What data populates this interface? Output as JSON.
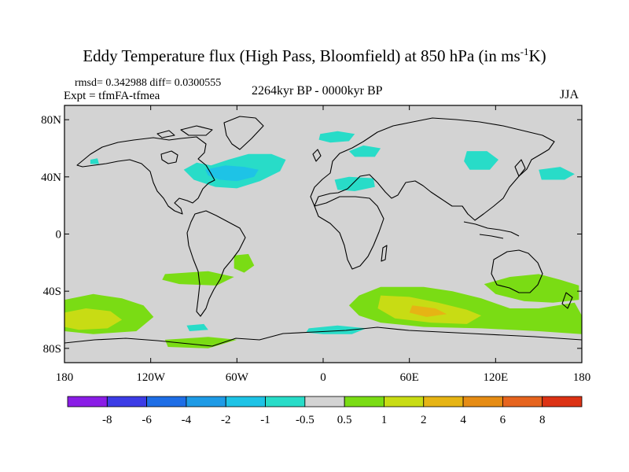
{
  "title_main": "Eddy Temperature flux (High Pass, Bloomfield) at 850 hPa (in ms",
  "title_sup": "-1",
  "title_end": "K)",
  "stats": "rmsd= 0.342988 diff= 0.0300555",
  "expt": "Expt = tfmFA-tfmea",
  "period": "2264kyr BP - 0000kyr BP",
  "season": "JJA",
  "colors": {
    "background": "#ffffff",
    "ocean_gray": "#d3d3d3",
    "coast": "#000000"
  },
  "chart_data": {
    "type": "heatmap",
    "title": "Eddy Temperature flux (High Pass, Bloomfield) at 850 hPa (in ms-1K)",
    "projection": "cylindrical-equidistant",
    "xlim": [
      -180,
      180
    ],
    "ylim": [
      -90,
      90
    ],
    "x_ticks": [
      {
        "value": -180,
        "label": "180"
      },
      {
        "value": -120,
        "label": "120W"
      },
      {
        "value": -60,
        "label": "60W"
      },
      {
        "value": 0,
        "label": "0"
      },
      {
        "value": 60,
        "label": "60E"
      },
      {
        "value": 120,
        "label": "120E"
      },
      {
        "value": 180,
        "label": "180"
      }
    ],
    "y_ticks": [
      {
        "value": 80,
        "label": "80N"
      },
      {
        "value": 40,
        "label": "40N"
      },
      {
        "value": 0,
        "label": "0"
      },
      {
        "value": -40,
        "label": "40S"
      },
      {
        "value": -80,
        "label": "80S"
      }
    ],
    "colorbar": {
      "labels": [
        "-8",
        "-6",
        "-4",
        "-2",
        "-1",
        "-0.5",
        "0.5",
        "1",
        "2",
        "4",
        "6",
        "8"
      ],
      "colors": [
        "#8a1de6",
        "#3c3ce6",
        "#1e6ee6",
        "#1e9be6",
        "#1ec3e6",
        "#28dcc8",
        "#d3d3d3",
        "#7adc14",
        "#c8dc14",
        "#e6b414",
        "#e68c14",
        "#e6641e",
        "#dc3214"
      ]
    },
    "regions": [
      {
        "name": "North Atlantic negative",
        "level": "-1 to -0.5",
        "color": "#28dcc8",
        "lon": [
          -100,
          -8,
          -8,
          -100
        ],
        "lat": [
          48,
          60,
          30,
          30
        ],
        "path": [
          [
            -97,
            45
          ],
          [
            -88,
            50
          ],
          [
            -78,
            48
          ],
          [
            -66,
            52
          ],
          [
            -52,
            56
          ],
          [
            -36,
            56
          ],
          [
            -26,
            52
          ],
          [
            -30,
            44
          ],
          [
            -44,
            37
          ],
          [
            -60,
            32
          ],
          [
            -75,
            33
          ],
          [
            -90,
            38
          ]
        ]
      },
      {
        "name": "North Atlantic core",
        "level": "-2 to -1",
        "color": "#1ec3e6",
        "path": [
          [
            -82,
            45
          ],
          [
            -68,
            48
          ],
          [
            -55,
            47
          ],
          [
            -45,
            45
          ],
          [
            -48,
            40
          ],
          [
            -60,
            37
          ],
          [
            -72,
            38
          ],
          [
            -80,
            41
          ]
        ]
      },
      {
        "name": "North Sea negative",
        "level": "-1 to -0.5",
        "color": "#28dcc8",
        "path": [
          [
            -2,
            70
          ],
          [
            10,
            72
          ],
          [
            22,
            70
          ],
          [
            18,
            65
          ],
          [
            5,
            64
          ],
          [
            -3,
            66
          ]
        ]
      },
      {
        "name": "Scandinavia negative",
        "level": "-1 to -0.5",
        "color": "#28dcc8",
        "path": [
          [
            18,
            58
          ],
          [
            28,
            62
          ],
          [
            40,
            60
          ],
          [
            36,
            54
          ],
          [
            22,
            54
          ]
        ]
      },
      {
        "name": "Mediterranean negative",
        "level": "-1 to -0.5",
        "color": "#28dcc8",
        "path": [
          [
            8,
            38
          ],
          [
            18,
            40
          ],
          [
            35,
            39
          ],
          [
            36,
            33
          ],
          [
            22,
            30
          ],
          [
            10,
            31
          ]
        ]
      },
      {
        "name": "Central Asia negative",
        "level": "-1 to -0.5",
        "color": "#28dcc8",
        "path": [
          [
            100,
            58
          ],
          [
            114,
            58
          ],
          [
            122,
            52
          ],
          [
            116,
            45
          ],
          [
            102,
            45
          ],
          [
            98,
            51
          ]
        ]
      },
      {
        "name": "NW Pacific negative",
        "level": "-1 to -0.5",
        "color": "#28dcc8",
        "path": [
          [
            150,
            45
          ],
          [
            165,
            47
          ],
          [
            175,
            42
          ],
          [
            168,
            38
          ],
          [
            152,
            38
          ]
        ]
      },
      {
        "name": "North Pacific small",
        "level": "-1 to -0.5",
        "color": "#28dcc8",
        "path": [
          [
            -162,
            52
          ],
          [
            -157,
            53
          ],
          [
            -156,
            49
          ],
          [
            -162,
            49
          ]
        ]
      },
      {
        "name": "Southern Indian positive",
        "level": "0.5 to 1",
        "color": "#7adc14",
        "path": [
          [
            25,
            -43
          ],
          [
            40,
            -37
          ],
          [
            70,
            -37
          ],
          [
            90,
            -40
          ],
          [
            110,
            -45
          ],
          [
            130,
            -52
          ],
          [
            150,
            -52
          ],
          [
            175,
            -48
          ],
          [
            180,
            -57
          ],
          [
            180,
            -70
          ],
          [
            150,
            -68
          ],
          [
            110,
            -66
          ],
          [
            70,
            -65
          ],
          [
            40,
            -62
          ],
          [
            25,
            -57
          ],
          [
            18,
            -50
          ]
        ]
      },
      {
        "name": "Southern Indian core",
        "level": "1 to 2",
        "color": "#c8dc14",
        "path": [
          [
            40,
            -43
          ],
          [
            60,
            -44
          ],
          [
            80,
            -48
          ],
          [
            100,
            -53
          ],
          [
            110,
            -57
          ],
          [
            100,
            -63
          ],
          [
            75,
            -62
          ],
          [
            50,
            -59
          ],
          [
            38,
            -52
          ]
        ]
      },
      {
        "name": "Southern Indian max",
        "level": "2 to 4",
        "color": "#e6b414",
        "path": [
          [
            62,
            -50
          ],
          [
            78,
            -52
          ],
          [
            86,
            -56
          ],
          [
            72,
            -58
          ],
          [
            60,
            -55
          ]
        ]
      },
      {
        "name": "Australia positive",
        "level": "0.5 to 1",
        "color": "#7adc14",
        "path": [
          [
            112,
            -35
          ],
          [
            130,
            -30
          ],
          [
            150,
            -28
          ],
          [
            165,
            -32
          ],
          [
            178,
            -36
          ],
          [
            178,
            -46
          ],
          [
            160,
            -48
          ],
          [
            140,
            -47
          ],
          [
            120,
            -42
          ]
        ]
      },
      {
        "name": "South Pacific positive",
        "level": "0.5 to 1",
        "color": "#7adc14",
        "path": [
          [
            -180,
            -46
          ],
          [
            -160,
            -42
          ],
          [
            -140,
            -45
          ],
          [
            -125,
            -50
          ],
          [
            -118,
            -58
          ],
          [
            -130,
            -68
          ],
          [
            -160,
            -70
          ],
          [
            -180,
            -68
          ]
        ]
      },
      {
        "name": "South Pacific core",
        "level": "1 to 2",
        "color": "#c8dc14",
        "path": [
          [
            -180,
            -55
          ],
          [
            -165,
            -52
          ],
          [
            -148,
            -54
          ],
          [
            -140,
            -60
          ],
          [
            -150,
            -66
          ],
          [
            -170,
            -67
          ],
          [
            -180,
            -65
          ]
        ]
      },
      {
        "name": "South Pacific mid positive",
        "level": "0.5 to 1",
        "color": "#7adc14",
        "path": [
          [
            -110,
            -28
          ],
          [
            -80,
            -26
          ],
          [
            -62,
            -30
          ],
          [
            -74,
            -36
          ],
          [
            -100,
            -35
          ],
          [
            -112,
            -32
          ]
        ]
      },
      {
        "name": "South Atlantic positive",
        "level": "0.5 to 1",
        "color": "#7adc14",
        "path": [
          [
            -62,
            -15
          ],
          [
            -52,
            -14
          ],
          [
            -48,
            -22
          ],
          [
            -55,
            -27
          ],
          [
            -62,
            -24
          ]
        ]
      },
      {
        "name": "Antarctic coast positive",
        "level": "0.5 to 1",
        "color": "#7adc14",
        "path": [
          [
            -110,
            -74
          ],
          [
            -80,
            -72
          ],
          [
            -60,
            -74
          ],
          [
            -80,
            -80
          ],
          [
            -108,
            -79
          ]
        ]
      },
      {
        "name": "Weddell negative",
        "level": "-1 to -0.5",
        "color": "#28dcc8",
        "path": [
          [
            -10,
            -66
          ],
          [
            10,
            -64
          ],
          [
            30,
            -66
          ],
          [
            20,
            -70
          ],
          [
            0,
            -70
          ],
          [
            -12,
            -69
          ]
        ]
      },
      {
        "name": "Amundsen negative",
        "level": "-1 to -0.5",
        "color": "#28dcc8",
        "path": [
          [
            -95,
            -64
          ],
          [
            -83,
            -63
          ],
          [
            -80,
            -67
          ],
          [
            -93,
            -68
          ]
        ]
      }
    ]
  }
}
